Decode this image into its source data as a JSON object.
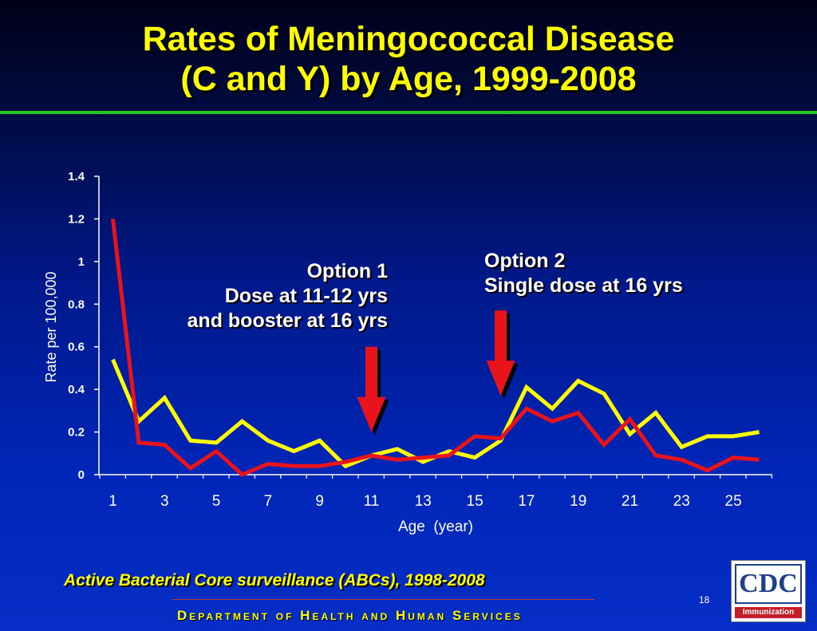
{
  "slide": {
    "title_line1": "Rates of Meningococcal Disease",
    "title_line2": "(C and Y) by Age, 1999-2008",
    "option1_line1": "Option 1",
    "option1_line2": "Dose at 11-12 yrs",
    "option1_line3": "and booster at 16 yrs",
    "option2_line1": "Option 2",
    "option2_line2": "Single dose at 16 yrs",
    "source": "Active Bacterial Core surveillance (ABCs), 1998-2008",
    "page_number": "18",
    "department": "Department of Health and Human Services",
    "logo_text": "CDC",
    "logo_banner": "Immunization"
  },
  "colors": {
    "title": "#ffff00",
    "rule": "#22c822",
    "series_yellow": "#ffff00",
    "series_red": "#e8141c",
    "arrow": "#e8141c",
    "axis": "#ffffff"
  },
  "chart_data": {
    "type": "line",
    "xlabel": "Age  (year)",
    "ylabel": "Rate per 100,000",
    "x": [
      1,
      2,
      3,
      4,
      5,
      6,
      7,
      8,
      9,
      10,
      11,
      12,
      13,
      14,
      15,
      16,
      17,
      18,
      19,
      20,
      21,
      22,
      23,
      24,
      25,
      26
    ],
    "x_tick_labels": [
      "1",
      "3",
      "5",
      "7",
      "9",
      "11",
      "13",
      "15",
      "17",
      "19",
      "21",
      "23",
      "25"
    ],
    "y_ticks": [
      0,
      0.2,
      0.4,
      0.6,
      0.8,
      1,
      1.2,
      1.4
    ],
    "y_tick_labels": [
      "0",
      "0.2",
      "0.4",
      "0.6",
      "0.8",
      "1",
      "1.2",
      "1.4"
    ],
    "ylim": [
      0,
      1.4
    ],
    "grid": false,
    "legend": "none",
    "series": [
      {
        "color": "#ffff00",
        "values": [
          0.54,
          0.25,
          0.36,
          0.16,
          0.15,
          0.25,
          0.16,
          0.11,
          0.16,
          0.04,
          0.09,
          0.12,
          0.06,
          0.11,
          0.08,
          0.16,
          0.41,
          0.31,
          0.44,
          0.38,
          0.19,
          0.29,
          0.13,
          0.18,
          0.18,
          0.2
        ]
      },
      {
        "color": "#e8141c",
        "values": [
          1.2,
          0.15,
          0.14,
          0.03,
          0.11,
          0.0,
          0.05,
          0.04,
          0.04,
          0.06,
          0.09,
          0.07,
          0.08,
          0.09,
          0.18,
          0.17,
          0.31,
          0.25,
          0.29,
          0.14,
          0.26,
          0.09,
          0.07,
          0.02,
          0.08,
          0.07
        ]
      }
    ],
    "annotations": [
      {
        "text": "Option 1 / Dose at 11-12 yrs / and booster at 16 yrs",
        "arrow_at_x": 11,
        "arrow_from_y": 0.6,
        "arrow_to_y": 0.2
      },
      {
        "text": "Option 2 / Single dose at 16 yrs",
        "arrow_at_x": 16,
        "arrow_from_y": 0.77,
        "arrow_to_y": 0.37
      }
    ]
  }
}
